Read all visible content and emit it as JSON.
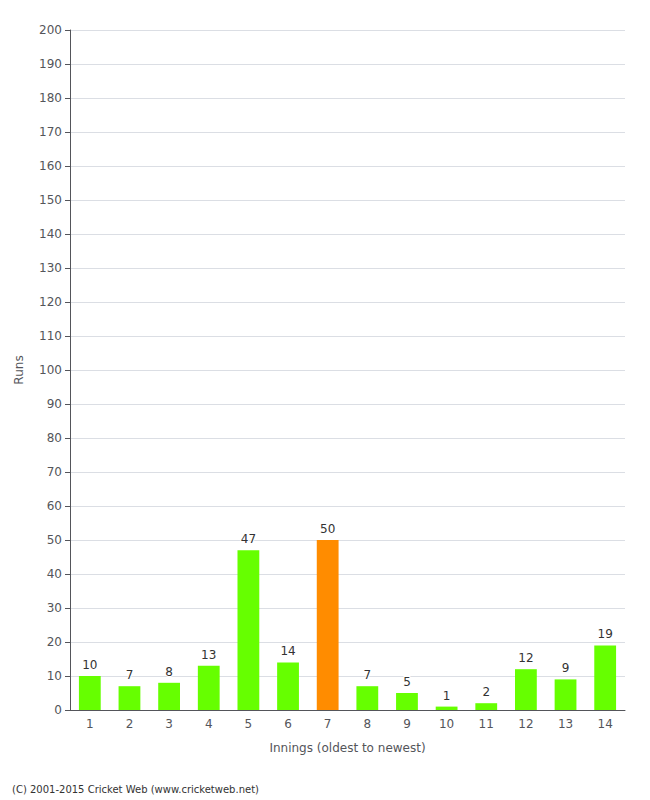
{
  "chart_data": {
    "type": "bar",
    "xlabel": "Innings (oldest to newest)",
    "ylabel": "Runs",
    "categories": [
      "1",
      "2",
      "3",
      "4",
      "5",
      "6",
      "7",
      "8",
      "9",
      "10",
      "11",
      "12",
      "13",
      "14"
    ],
    "values": [
      10,
      7,
      8,
      13,
      47,
      14,
      50,
      7,
      5,
      1,
      2,
      12,
      9,
      19
    ],
    "colors": [
      "#66ff00",
      "#66ff00",
      "#66ff00",
      "#66ff00",
      "#66ff00",
      "#66ff00",
      "#ff8c00",
      "#66ff00",
      "#66ff00",
      "#66ff00",
      "#66ff00",
      "#66ff00",
      "#66ff00",
      "#66ff00"
    ],
    "ylim": [
      0,
      200
    ],
    "yticks": [
      0,
      10,
      20,
      30,
      40,
      50,
      60,
      70,
      80,
      90,
      100,
      110,
      120,
      130,
      140,
      150,
      160,
      170,
      180,
      190,
      200
    ],
    "grid": true,
    "data_labels": true,
    "annotation": "(C) 2001-2015 Cricket Web (www.cricketweb.net)"
  }
}
